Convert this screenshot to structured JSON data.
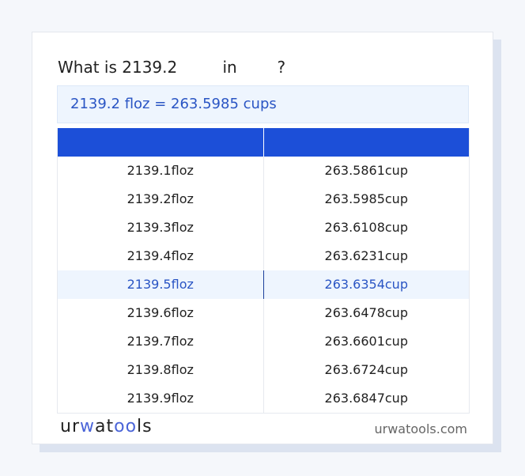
{
  "title": "What is 2139.2         in        ?",
  "result": "2139.2 floz = 263.5985 cups",
  "table": {
    "headers": [
      "",
      ""
    ],
    "rows": [
      [
        "2139.1floz",
        "263.5861cup"
      ],
      [
        "2139.2floz",
        "263.5985cup"
      ],
      [
        "2139.3floz",
        "263.6108cup"
      ],
      [
        "2139.4floz",
        "263.6231cup"
      ],
      [
        "2139.5floz",
        "263.6354cup"
      ],
      [
        "2139.6floz",
        "263.6478cup"
      ],
      [
        "2139.7floz",
        "263.6601cup"
      ],
      [
        "2139.8floz",
        "263.6724cup"
      ],
      [
        "2139.9floz",
        "263.6847cup"
      ]
    ],
    "highlighted_row": 4
  },
  "footer": {
    "logo": "urwatools",
    "site": "urwatools.com"
  },
  "colors": {
    "accent": "#1c4fd8",
    "highlight_bg": "#eef5fe"
  }
}
